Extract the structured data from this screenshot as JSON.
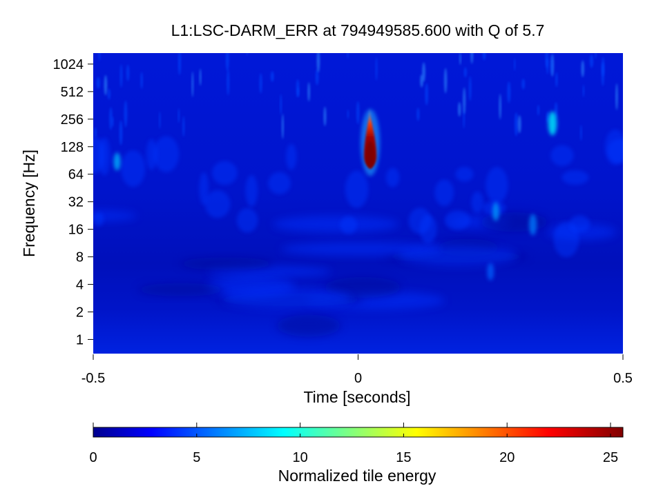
{
  "chart_data": {
    "type": "heatmap",
    "title": "L1:LSC-DARM_ERR at 794949585.600 with Q of 5.7",
    "xlabel": "Time [seconds]",
    "ylabel": "Frequency [Hz]",
    "xlim": [
      -0.5,
      0.5
    ],
    "ylim": [
      0.7,
      1350
    ],
    "y_scale": "log2",
    "x_ticks": [
      "-0.5",
      "0",
      "0.5"
    ],
    "y_ticks": [
      "1",
      "2",
      "4",
      "8",
      "16",
      "32",
      "64",
      "128",
      "256",
      "512",
      "1024"
    ],
    "colorbar": {
      "label": "Normalized tile energy",
      "range": [
        0,
        25.6
      ],
      "ticks": [
        "0",
        "5",
        "10",
        "15",
        "20",
        "25"
      ],
      "colormap": "jet"
    },
    "background_energy": 2,
    "features": [
      {
        "t": 0.023,
        "f_low": 78,
        "f_high": 340,
        "f_peak": 115,
        "energy": 25.6
      },
      {
        "t": 0.367,
        "f_low": 180,
        "f_high": 330,
        "f_peak": 230,
        "energy": 6
      },
      {
        "t": -0.455,
        "f_low": 70,
        "f_high": 110,
        "f_peak": 88,
        "energy": 5
      },
      {
        "t": 0.26,
        "f_low": 20,
        "f_high": 32,
        "f_peak": 25,
        "energy": 4.5
      },
      {
        "t": 0.33,
        "f_low": 14,
        "f_high": 24,
        "f_peak": 18,
        "energy": 4
      },
      {
        "t": 0.25,
        "f_low": 4.5,
        "f_high": 7,
        "f_peak": 5.5,
        "energy": 3.5
      }
    ]
  },
  "colors": {
    "jet_low": "#00008f",
    "jet_high": "#800000"
  }
}
